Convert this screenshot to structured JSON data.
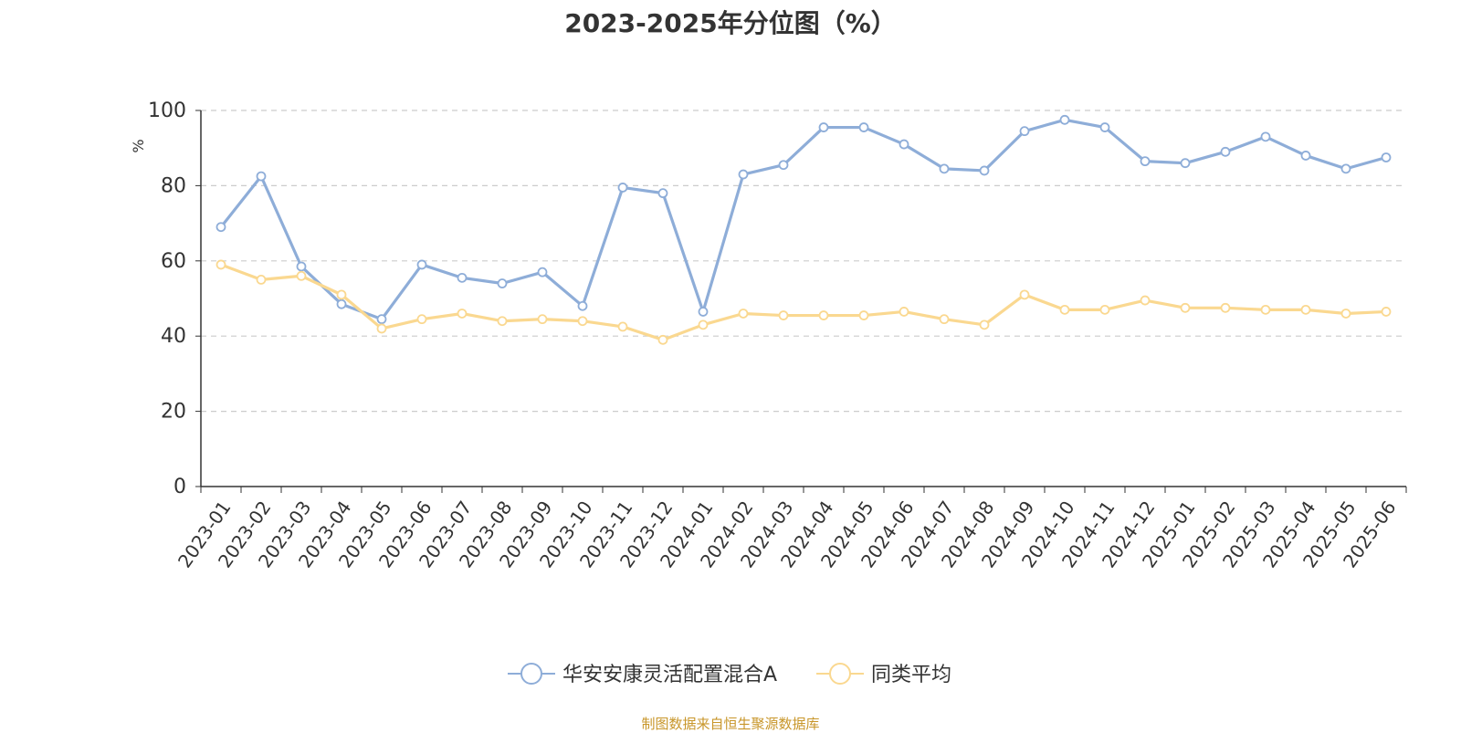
{
  "colors": {
    "series_main": "#8eadd8",
    "series_avg": "#fad890",
    "axis": "#333333",
    "grid": "#cccccc",
    "ylabel": "#e02020",
    "source": "#c8962a"
  },
  "chart_data": {
    "type": "line",
    "title": "2023-2025年分位图（%）",
    "ylabel": "%",
    "xlabel": "",
    "ylim": [
      0,
      100
    ],
    "yticks": [
      0,
      20,
      40,
      60,
      80,
      100
    ],
    "grid": "horizontal dashed",
    "legend_position": "bottom-center",
    "categories": [
      "2023-01",
      "2023-02",
      "2023-03",
      "2023-04",
      "2023-05",
      "2023-06",
      "2023-07",
      "2023-08",
      "2023-09",
      "2023-10",
      "2023-11",
      "2023-12",
      "2024-01",
      "2024-02",
      "2024-03",
      "2024-04",
      "2024-05",
      "2024-06",
      "2024-07",
      "2024-08",
      "2024-09",
      "2024-10",
      "2024-11",
      "2024-12",
      "2025-01",
      "2025-02",
      "2025-03",
      "2025-04",
      "2025-05",
      "2025-06"
    ],
    "series": [
      {
        "name": "华安安康灵活配置混合A",
        "color": "#8eadd8",
        "values": [
          69,
          82.5,
          58.5,
          48.5,
          44.5,
          59,
          55.5,
          54,
          57,
          48,
          79.5,
          78,
          46.5,
          83,
          85.5,
          95.5,
          95.5,
          91,
          84.5,
          84,
          94.5,
          97.5,
          95.5,
          86.5,
          86,
          89,
          93,
          88,
          84.5,
          87.5
        ]
      },
      {
        "name": "同类平均",
        "color": "#fad890",
        "values": [
          59,
          55,
          56,
          51,
          42,
          44.5,
          46,
          44,
          44.5,
          44,
          42.5,
          39,
          43,
          46,
          45.5,
          45.5,
          45.5,
          46.5,
          44.5,
          43,
          51,
          47,
          47,
          49.5,
          47.5,
          47.5,
          47,
          47,
          46,
          46.5
        ]
      }
    ]
  },
  "source_text": "制图数据来自恒生聚源数据库"
}
